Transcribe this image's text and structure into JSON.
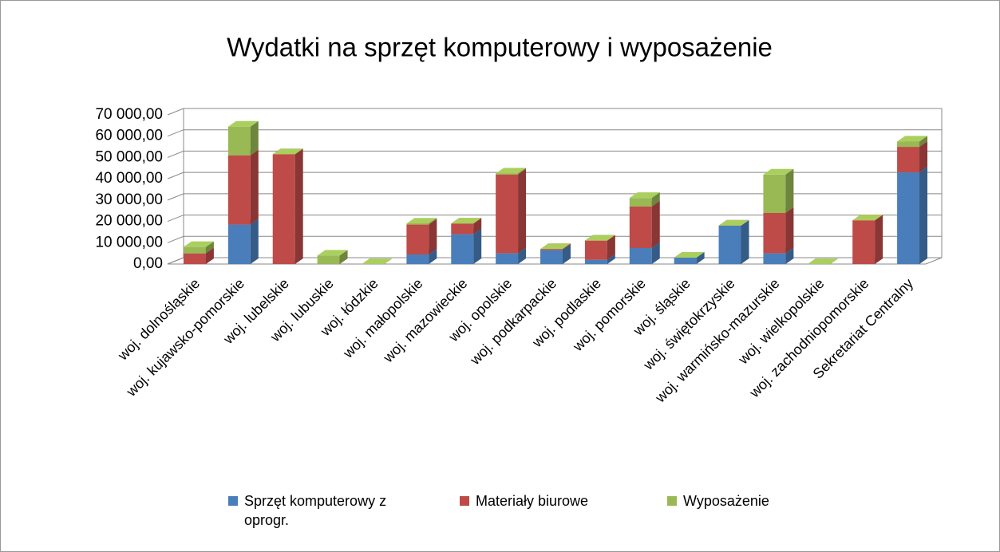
{
  "chart_data": {
    "type": "bar3d_stacked",
    "title": "Wydatki na sprzęt komputerowy i wyposażenie",
    "categories": [
      "woj. dolnośląskie",
      "woj. kujawsko-pomorskie",
      "woj. lubelskie",
      "woj. lubuskie",
      "woj. łódzkie",
      "woj. małopolskie",
      "woj. mazowieckie",
      "woj. opolskie",
      "woj. podkarpackie",
      "woj. podlaskie",
      "woj. pomorskie",
      "woj. śląskie",
      "woj. świętokrzyskie",
      "woj. warmińsko-mazurskie",
      "woj. wielkopolskie",
      "woj. zachodniopomorskie",
      "Sekretariat Centralny"
    ],
    "series": [
      {
        "name": "Sprzęt komputerowy z oprogr.",
        "color": "#4a7ebb",
        "values": [
          0,
          18500,
          0,
          0,
          0,
          4500,
          14000,
          5000,
          6500,
          2000,
          7500,
          3000,
          18000,
          5000,
          0,
          0,
          43000
        ]
      },
      {
        "name": "Materiały biurowe",
        "color": "#be4b48",
        "values": [
          5000,
          32500,
          51500,
          0,
          0,
          14000,
          5000,
          37000,
          500,
          9000,
          19500,
          0,
          0,
          19000,
          0,
          20500,
          12000
        ]
      },
      {
        "name": "Wyposażenie",
        "color": "#98b954",
        "values": [
          3000,
          13500,
          0,
          4000,
          0,
          500,
          0,
          500,
          0,
          0,
          4000,
          0,
          0,
          18000,
          0,
          0,
          2500
        ]
      }
    ],
    "ylim": [
      0,
      70000
    ],
    "yticks": [
      {
        "value": 0,
        "label": "0,00"
      },
      {
        "value": 10000,
        "label": "10 000,00"
      },
      {
        "value": 20000,
        "label": "20 000,00"
      },
      {
        "value": 30000,
        "label": "30 000,00"
      },
      {
        "value": 40000,
        "label": "40 000,00"
      },
      {
        "value": 50000,
        "label": "50 000,00"
      },
      {
        "value": 60000,
        "label": "60 000,00"
      },
      {
        "value": 70000,
        "label": "70 000,00"
      }
    ],
    "grid": true,
    "legend": "bottom"
  }
}
